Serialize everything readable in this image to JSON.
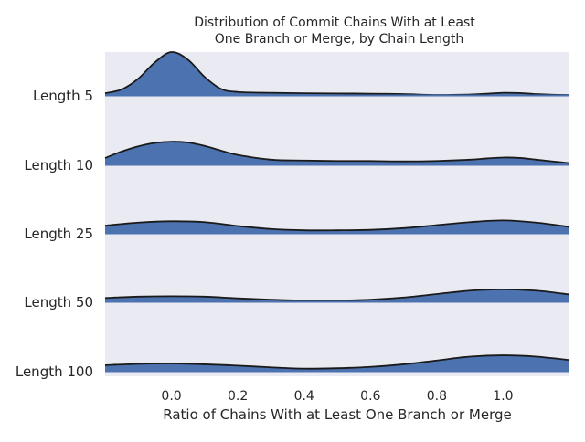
{
  "chart_data": {
    "type": "area",
    "title_lines": [
      "Distribution of Commit Chains With at Least",
      "One Branch or Merge, by Chain Length"
    ],
    "xlabel": "Ratio of Chains With at Least One Branch or Merge",
    "ylabel": "",
    "xlim": [
      -0.2,
      1.2
    ],
    "xticks": [
      0.0,
      0.2,
      0.4,
      0.6,
      0.8,
      1.0
    ],
    "xtick_labels": [
      "0.0",
      "0.2",
      "0.4",
      "0.6",
      "0.8",
      "1.0"
    ],
    "grid": false,
    "legend": "none",
    "colors": {
      "fill": "#4c72b0",
      "line": "#1a1a1a",
      "background": "#eaeaf2"
    },
    "series": [
      {
        "name": "Length 5",
        "x": [
          -0.2,
          -0.15,
          -0.1,
          -0.05,
          0.0,
          0.05,
          0.1,
          0.15,
          0.2,
          0.3,
          0.4,
          0.5,
          0.6,
          0.7,
          0.8,
          0.9,
          0.95,
          1.0,
          1.05,
          1.1,
          1.15,
          1.2
        ],
        "density": [
          0.04,
          0.13,
          0.38,
          0.76,
          1.0,
          0.82,
          0.42,
          0.14,
          0.07,
          0.05,
          0.04,
          0.035,
          0.03,
          0.02,
          0.0,
          0.01,
          0.03,
          0.05,
          0.045,
          0.02,
          0.005,
          0.0
        ]
      },
      {
        "name": "Length 10",
        "x": [
          -0.2,
          -0.15,
          -0.1,
          -0.05,
          0.0,
          0.05,
          0.1,
          0.15,
          0.2,
          0.3,
          0.4,
          0.5,
          0.6,
          0.7,
          0.8,
          0.9,
          0.95,
          1.0,
          1.05,
          1.1,
          1.15,
          1.2
        ],
        "density": [
          0.15,
          0.3,
          0.42,
          0.5,
          0.53,
          0.51,
          0.43,
          0.32,
          0.22,
          0.11,
          0.09,
          0.08,
          0.08,
          0.07,
          0.08,
          0.11,
          0.14,
          0.16,
          0.15,
          0.11,
          0.07,
          0.03
        ]
      },
      {
        "name": "Length 25",
        "x": [
          -0.2,
          -0.1,
          0.0,
          0.1,
          0.2,
          0.3,
          0.4,
          0.5,
          0.6,
          0.7,
          0.8,
          0.9,
          1.0,
          1.1,
          1.2
        ],
        "density": [
          0.17,
          0.24,
          0.27,
          0.25,
          0.16,
          0.09,
          0.06,
          0.06,
          0.07,
          0.11,
          0.18,
          0.25,
          0.29,
          0.24,
          0.14
        ]
      },
      {
        "name": "Length 50",
        "x": [
          -0.2,
          -0.1,
          0.0,
          0.1,
          0.2,
          0.3,
          0.4,
          0.5,
          0.6,
          0.7,
          0.8,
          0.9,
          1.0,
          1.1,
          1.2
        ],
        "density": [
          0.08,
          0.11,
          0.12,
          0.11,
          0.07,
          0.04,
          0.02,
          0.02,
          0.04,
          0.09,
          0.17,
          0.25,
          0.28,
          0.25,
          0.16
        ]
      },
      {
        "name": "Length 100",
        "x": [
          -0.2,
          -0.1,
          0.0,
          0.1,
          0.2,
          0.3,
          0.4,
          0.5,
          0.6,
          0.7,
          0.8,
          0.9,
          1.0,
          1.1,
          1.2
        ],
        "density": [
          0.13,
          0.16,
          0.17,
          0.15,
          0.12,
          0.08,
          0.05,
          0.06,
          0.09,
          0.15,
          0.24,
          0.33,
          0.36,
          0.33,
          0.25
        ]
      }
    ]
  }
}
